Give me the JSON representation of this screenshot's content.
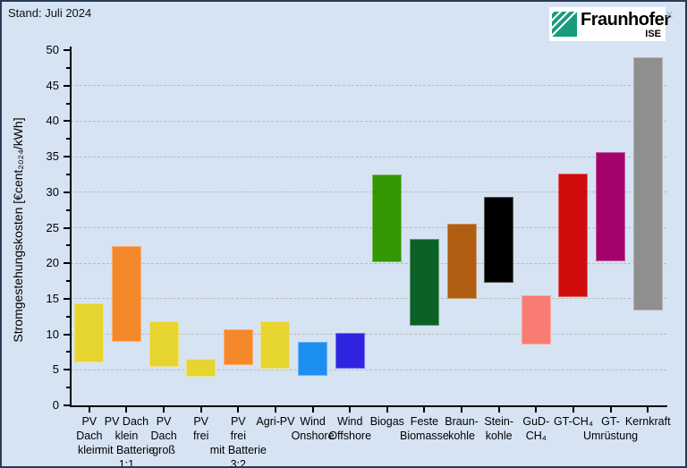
{
  "meta": {
    "stand": "Stand: Juli 2024"
  },
  "logo": {
    "brand": "Fraunhofer",
    "sub": "ISE",
    "close": "×",
    "green": "#179c7d"
  },
  "chart_data": {
    "type": "bar",
    "subtype": "floating-range-bars",
    "title": "",
    "ylabel": "Stromgestehungskosten [€cent₂₀₂₄/kWh]",
    "unit": "€cent2024/kWh",
    "ylim": [
      0,
      50
    ],
    "ytick_major_step": 5,
    "ytick_minor_step": 2.5,
    "grid": {
      "horizontal_dashed_at": [
        5,
        10,
        15,
        20,
        25,
        30,
        35,
        40,
        45
      ]
    },
    "legend": "none",
    "categories": [
      "PV Dach klein",
      "PV Dach klein mit Batterie 1:1",
      "PV Dach groß",
      "PV frei",
      "PV frei mit Batterie 3:2",
      "Agri-PV",
      "Wind Onshore",
      "Wind Offshore",
      "Biogas",
      "Feste Biomasse",
      "Braunkohle",
      "Steinkohle",
      "GuD-CH₄",
      "GT-CH₄",
      "GT-Umrüstung",
      "Kernkraft"
    ],
    "bars": [
      {
        "label": "PV Dach klein",
        "label_lines": [
          "PV",
          "Dach",
          "klein"
        ],
        "min": 6.0,
        "max": 14.4,
        "color": "#e6d42f"
      },
      {
        "label": "PV Dach klein mit Batterie 1:1",
        "label_lines": [
          "PV Dach",
          "klein",
          "mit Batterie",
          "1:1"
        ],
        "min": 8.9,
        "max": 22.4,
        "color": "#f5882b"
      },
      {
        "label": "PV Dach groß",
        "label_lines": [
          "PV",
          "Dach",
          "groß"
        ],
        "min": 5.4,
        "max": 11.9,
        "color": "#e6d42f"
      },
      {
        "label": "PV frei",
        "label_lines": [
          "PV",
          "frei"
        ],
        "min": 4.0,
        "max": 6.6,
        "color": "#e6d42f"
      },
      {
        "label": "PV frei mit Batterie 3:2",
        "label_lines": [
          "PV",
          "frei",
          "mit Batterie",
          "3:2"
        ],
        "min": 5.7,
        "max": 10.7,
        "color": "#f5882b"
      },
      {
        "label": "Agri-PV",
        "label_lines": [
          "Agri-PV"
        ],
        "min": 5.1,
        "max": 11.9,
        "color": "#e6d42f"
      },
      {
        "label": "Wind Onshore",
        "label_lines": [
          "Wind",
          "Onshore"
        ],
        "min": 4.2,
        "max": 8.9,
        "color": "#1e8ff2"
      },
      {
        "label": "Wind Offshore",
        "label_lines": [
          "Wind",
          "Offshore"
        ],
        "min": 5.2,
        "max": 10.2,
        "color": "#2f25e0"
      },
      {
        "label": "Biogas",
        "label_lines": [
          "Biogas"
        ],
        "min": 20.2,
        "max": 32.5,
        "color": "#339704"
      },
      {
        "label": "Feste Biomasse",
        "label_lines": [
          "Feste",
          "Biomasse"
        ],
        "min": 11.2,
        "max": 23.4,
        "color": "#0c6128"
      },
      {
        "label": "Braunkohle",
        "label_lines": [
          "Braun-",
          "kohle"
        ],
        "min": 15.0,
        "max": 25.6,
        "color": "#b05e12"
      },
      {
        "label": "Steinkohle",
        "label_lines": [
          "Stein-",
          "kohle"
        ],
        "min": 17.3,
        "max": 29.3,
        "color": "#000000"
      },
      {
        "label": "GuD-CH₄",
        "label_lines": [
          "GuD-",
          "CH₄"
        ],
        "min": 8.6,
        "max": 15.5,
        "color": "#f97c72"
      },
      {
        "label": "GT-CH₄",
        "label_lines": [
          "GT-CH₄"
        ],
        "min": 15.2,
        "max": 32.6,
        "color": "#d00c0c"
      },
      {
        "label": "GT-Umrüstung",
        "label_lines": [
          "GT-",
          "Umrüstung"
        ],
        "min": 20.3,
        "max": 35.7,
        "color": "#a3026b"
      },
      {
        "label": "Kernkraft",
        "label_lines": [
          "Kernkraft"
        ],
        "min": 13.4,
        "max": 49.0,
        "color": "#8f8f8f"
      }
    ]
  }
}
